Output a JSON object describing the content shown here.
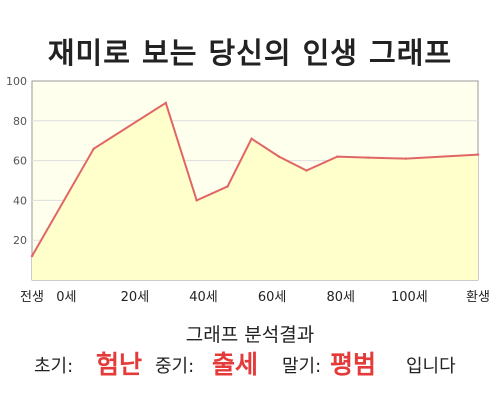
{
  "title": "재미로 보는 당신의 인생 그래프",
  "chart_data": {
    "type": "area",
    "x_ticks": [
      {
        "value": -10,
        "label": "전생"
      },
      {
        "value": 0,
        "label": "0세"
      },
      {
        "value": 20,
        "label": "20세"
      },
      {
        "value": 40,
        "label": "40세"
      },
      {
        "value": 60,
        "label": "60세"
      },
      {
        "value": 80,
        "label": "80세"
      },
      {
        "value": 100,
        "label": "100세"
      },
      {
        "value": 120,
        "label": "환생"
      }
    ],
    "y_ticks": [
      20,
      40,
      60,
      80,
      100
    ],
    "xlim": [
      -10,
      120
    ],
    "ylim": [
      0,
      100
    ],
    "grid": true,
    "series": [
      {
        "x": [
          -10,
          8,
          29,
          38,
          47,
          54,
          62,
          70,
          79,
          88,
          99,
          120
        ],
        "y": [
          12,
          66,
          89,
          40,
          47,
          71,
          62,
          55,
          62,
          61.5,
          61,
          63
        ]
      }
    ],
    "colors": {
      "line": "#e06666",
      "fill": "#ffffcc",
      "plot_bg": "#ffffee",
      "grid": "#dddddd"
    }
  },
  "analysis": {
    "heading": "그래프 분석결과",
    "early_label": "초기:",
    "early_value": "험난",
    "mid_label": "중기:",
    "mid_value": "출세",
    "late_label": "말기:",
    "late_value": "평범",
    "suffix": "입니다"
  }
}
